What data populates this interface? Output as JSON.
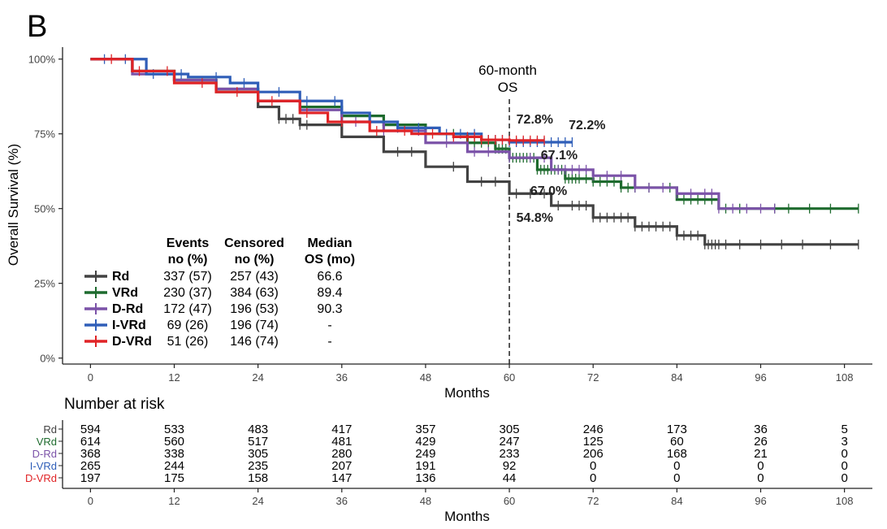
{
  "chart_data": {
    "type": "line",
    "panel_label": "B",
    "ylabel": "Overall Survival (%)",
    "xlabel": "Months",
    "x_ticks": [
      0,
      12,
      24,
      36,
      48,
      60,
      72,
      84,
      96,
      108
    ],
    "x_range": [
      -4,
      112
    ],
    "y_ticks": [
      0,
      25,
      50,
      75,
      100
    ],
    "y_tick_labels": [
      "0%",
      "25%",
      "50%",
      "75%",
      "100%"
    ],
    "y_range": [
      -2,
      104
    ],
    "reference_line": {
      "x": 60,
      "label_line1": "60-month",
      "label_line2": "OS"
    },
    "series": [
      {
        "name": "Rd",
        "color": "#424242",
        "events": "337 (57)",
        "censored": "257 (43)",
        "median": "66.6",
        "points": [
          [
            0,
            100
          ],
          [
            6,
            96
          ],
          [
            12,
            93
          ],
          [
            18,
            89
          ],
          [
            24,
            84
          ],
          [
            27,
            80
          ],
          [
            30,
            78
          ],
          [
            36,
            74
          ],
          [
            42,
            69
          ],
          [
            48,
            64
          ],
          [
            54,
            59
          ],
          [
            60,
            55
          ],
          [
            66,
            51
          ],
          [
            72,
            47
          ],
          [
            78,
            44
          ],
          [
            84,
            41
          ],
          [
            88,
            38
          ],
          [
            110,
            38
          ]
        ],
        "censor_x": [
          27,
          28,
          29,
          30,
          31,
          44,
          46,
          52,
          56,
          58,
          61,
          63,
          65,
          67,
          69,
          70,
          71,
          72,
          73,
          74,
          75,
          76,
          77,
          78,
          79,
          80,
          81,
          82,
          83,
          84,
          85,
          86,
          87,
          88,
          88.5,
          89,
          89.5,
          90,
          91,
          93,
          96,
          99,
          102,
          106,
          110
        ],
        "risk": [
          "594",
          "533",
          "483",
          "417",
          "357",
          "305",
          "246",
          "173",
          "36",
          "5"
        ]
      },
      {
        "name": "VRd",
        "color": "#1e6b2e",
        "events": "230 (37)",
        "censored": "384 (63)",
        "median": "89.4",
        "points": [
          [
            0,
            100
          ],
          [
            6,
            96
          ],
          [
            12,
            93
          ],
          [
            18,
            90
          ],
          [
            24,
            86
          ],
          [
            30,
            84
          ],
          [
            36,
            81
          ],
          [
            42,
            78
          ],
          [
            48,
            75
          ],
          [
            54,
            72
          ],
          [
            58,
            70
          ],
          [
            60,
            67
          ],
          [
            64,
            63
          ],
          [
            68,
            60
          ],
          [
            72,
            59
          ],
          [
            76,
            57
          ],
          [
            84,
            53
          ],
          [
            90,
            50
          ],
          [
            110,
            50
          ]
        ],
        "censor_x": [
          52,
          54,
          55,
          56,
          57,
          58,
          58.5,
          59,
          59.5,
          60,
          60.5,
          61,
          61.5,
          62,
          62.5,
          63,
          63.5,
          64,
          64.5,
          65,
          65.5,
          66,
          66.5,
          67,
          67.5,
          68,
          68.5,
          69,
          69.5,
          70,
          71,
          72,
          73,
          74,
          75,
          76,
          77,
          78,
          80,
          83,
          85,
          86,
          87,
          88,
          89,
          91,
          93,
          98,
          100,
          103,
          106,
          110
        ],
        "risk": [
          "614",
          "560",
          "517",
          "481",
          "429",
          "247",
          "125",
          "60",
          "26",
          "3"
        ]
      },
      {
        "name": "D-Rd",
        "color": "#7b52a8",
        "events": "172 (47)",
        "censored": "196 (53)",
        "median": "90.3",
        "points": [
          [
            0,
            100
          ],
          [
            6,
            95
          ],
          [
            12,
            93
          ],
          [
            18,
            90
          ],
          [
            24,
            86
          ],
          [
            30,
            83
          ],
          [
            36,
            79
          ],
          [
            42,
            76
          ],
          [
            48,
            72
          ],
          [
            54,
            69
          ],
          [
            60,
            67
          ],
          [
            66,
            63
          ],
          [
            72,
            61
          ],
          [
            78,
            57
          ],
          [
            84,
            55
          ],
          [
            90,
            50
          ],
          [
            98,
            50
          ]
        ],
        "censor_x": [
          38,
          42,
          47,
          51,
          55,
          57,
          60,
          63,
          65,
          67,
          68,
          69,
          70,
          71,
          72,
          74,
          76,
          78,
          80,
          82,
          84,
          86,
          88,
          89,
          90,
          92,
          94,
          96,
          98
        ],
        "risk": [
          "368",
          "338",
          "305",
          "280",
          "249",
          "233",
          "206",
          "168",
          "21",
          "0"
        ]
      },
      {
        "name": "I-VRd",
        "color": "#2f5eb8",
        "events": "69 (26)",
        "censored": "196 (74)",
        "median": "-",
        "points": [
          [
            0,
            100
          ],
          [
            8,
            95
          ],
          [
            14,
            94
          ],
          [
            20,
            92
          ],
          [
            24,
            89
          ],
          [
            30,
            86
          ],
          [
            36,
            82
          ],
          [
            40,
            79
          ],
          [
            44,
            77
          ],
          [
            50,
            75
          ],
          [
            56,
            73
          ],
          [
            60,
            72.2
          ],
          [
            69,
            72.2
          ]
        ],
        "censor_x": [
          2,
          5,
          9,
          13,
          18,
          22,
          27,
          31,
          35,
          40,
          44,
          47,
          51,
          53,
          55,
          57,
          58,
          59,
          60,
          61,
          62,
          63,
          64,
          65,
          66,
          67,
          68,
          69
        ],
        "risk": [
          "265",
          "244",
          "235",
          "207",
          "191",
          "92",
          "0",
          "0",
          "0",
          "0"
        ]
      },
      {
        "name": "D-VRd",
        "color": "#e02326",
        "events": "51 (26)",
        "censored": "146 (74)",
        "median": "-",
        "points": [
          [
            0,
            100
          ],
          [
            6,
            96
          ],
          [
            12,
            92
          ],
          [
            18,
            89
          ],
          [
            24,
            86
          ],
          [
            30,
            82
          ],
          [
            34,
            79
          ],
          [
            40,
            76
          ],
          [
            46,
            75
          ],
          [
            52,
            74
          ],
          [
            56,
            73
          ],
          [
            60,
            72.8
          ],
          [
            65,
            72.8
          ]
        ],
        "censor_x": [
          3,
          7,
          11,
          16,
          21,
          26,
          31,
          36,
          41,
          45,
          49,
          52,
          54,
          55,
          56,
          57,
          58,
          59,
          60,
          61,
          62,
          63,
          64,
          65
        ],
        "risk": [
          "197",
          "175",
          "158",
          "147",
          "136",
          "44",
          "0",
          "0",
          "0",
          "0"
        ]
      }
    ],
    "annotations": [
      {
        "text": "72.8%",
        "x": 61,
        "y": 78.5
      },
      {
        "text": "72.2%",
        "x": 68.5,
        "y": 76.5
      },
      {
        "text": "67.1%",
        "x": 64.5,
        "y": 66.5
      },
      {
        "text": "67.0%",
        "x": 63,
        "y": 54.5
      },
      {
        "text": "54.8%",
        "x": 61,
        "y": 45.5
      }
    ],
    "legend_headers": {
      "events_line1": "Events",
      "events_line2": "no (%)",
      "censored_line1": "Censored",
      "censored_line2": "no (%)",
      "median_line1": "Median",
      "median_line2": "OS (mo)"
    },
    "risk_table": {
      "title": "Number at risk",
      "xlabel": "Months"
    }
  }
}
